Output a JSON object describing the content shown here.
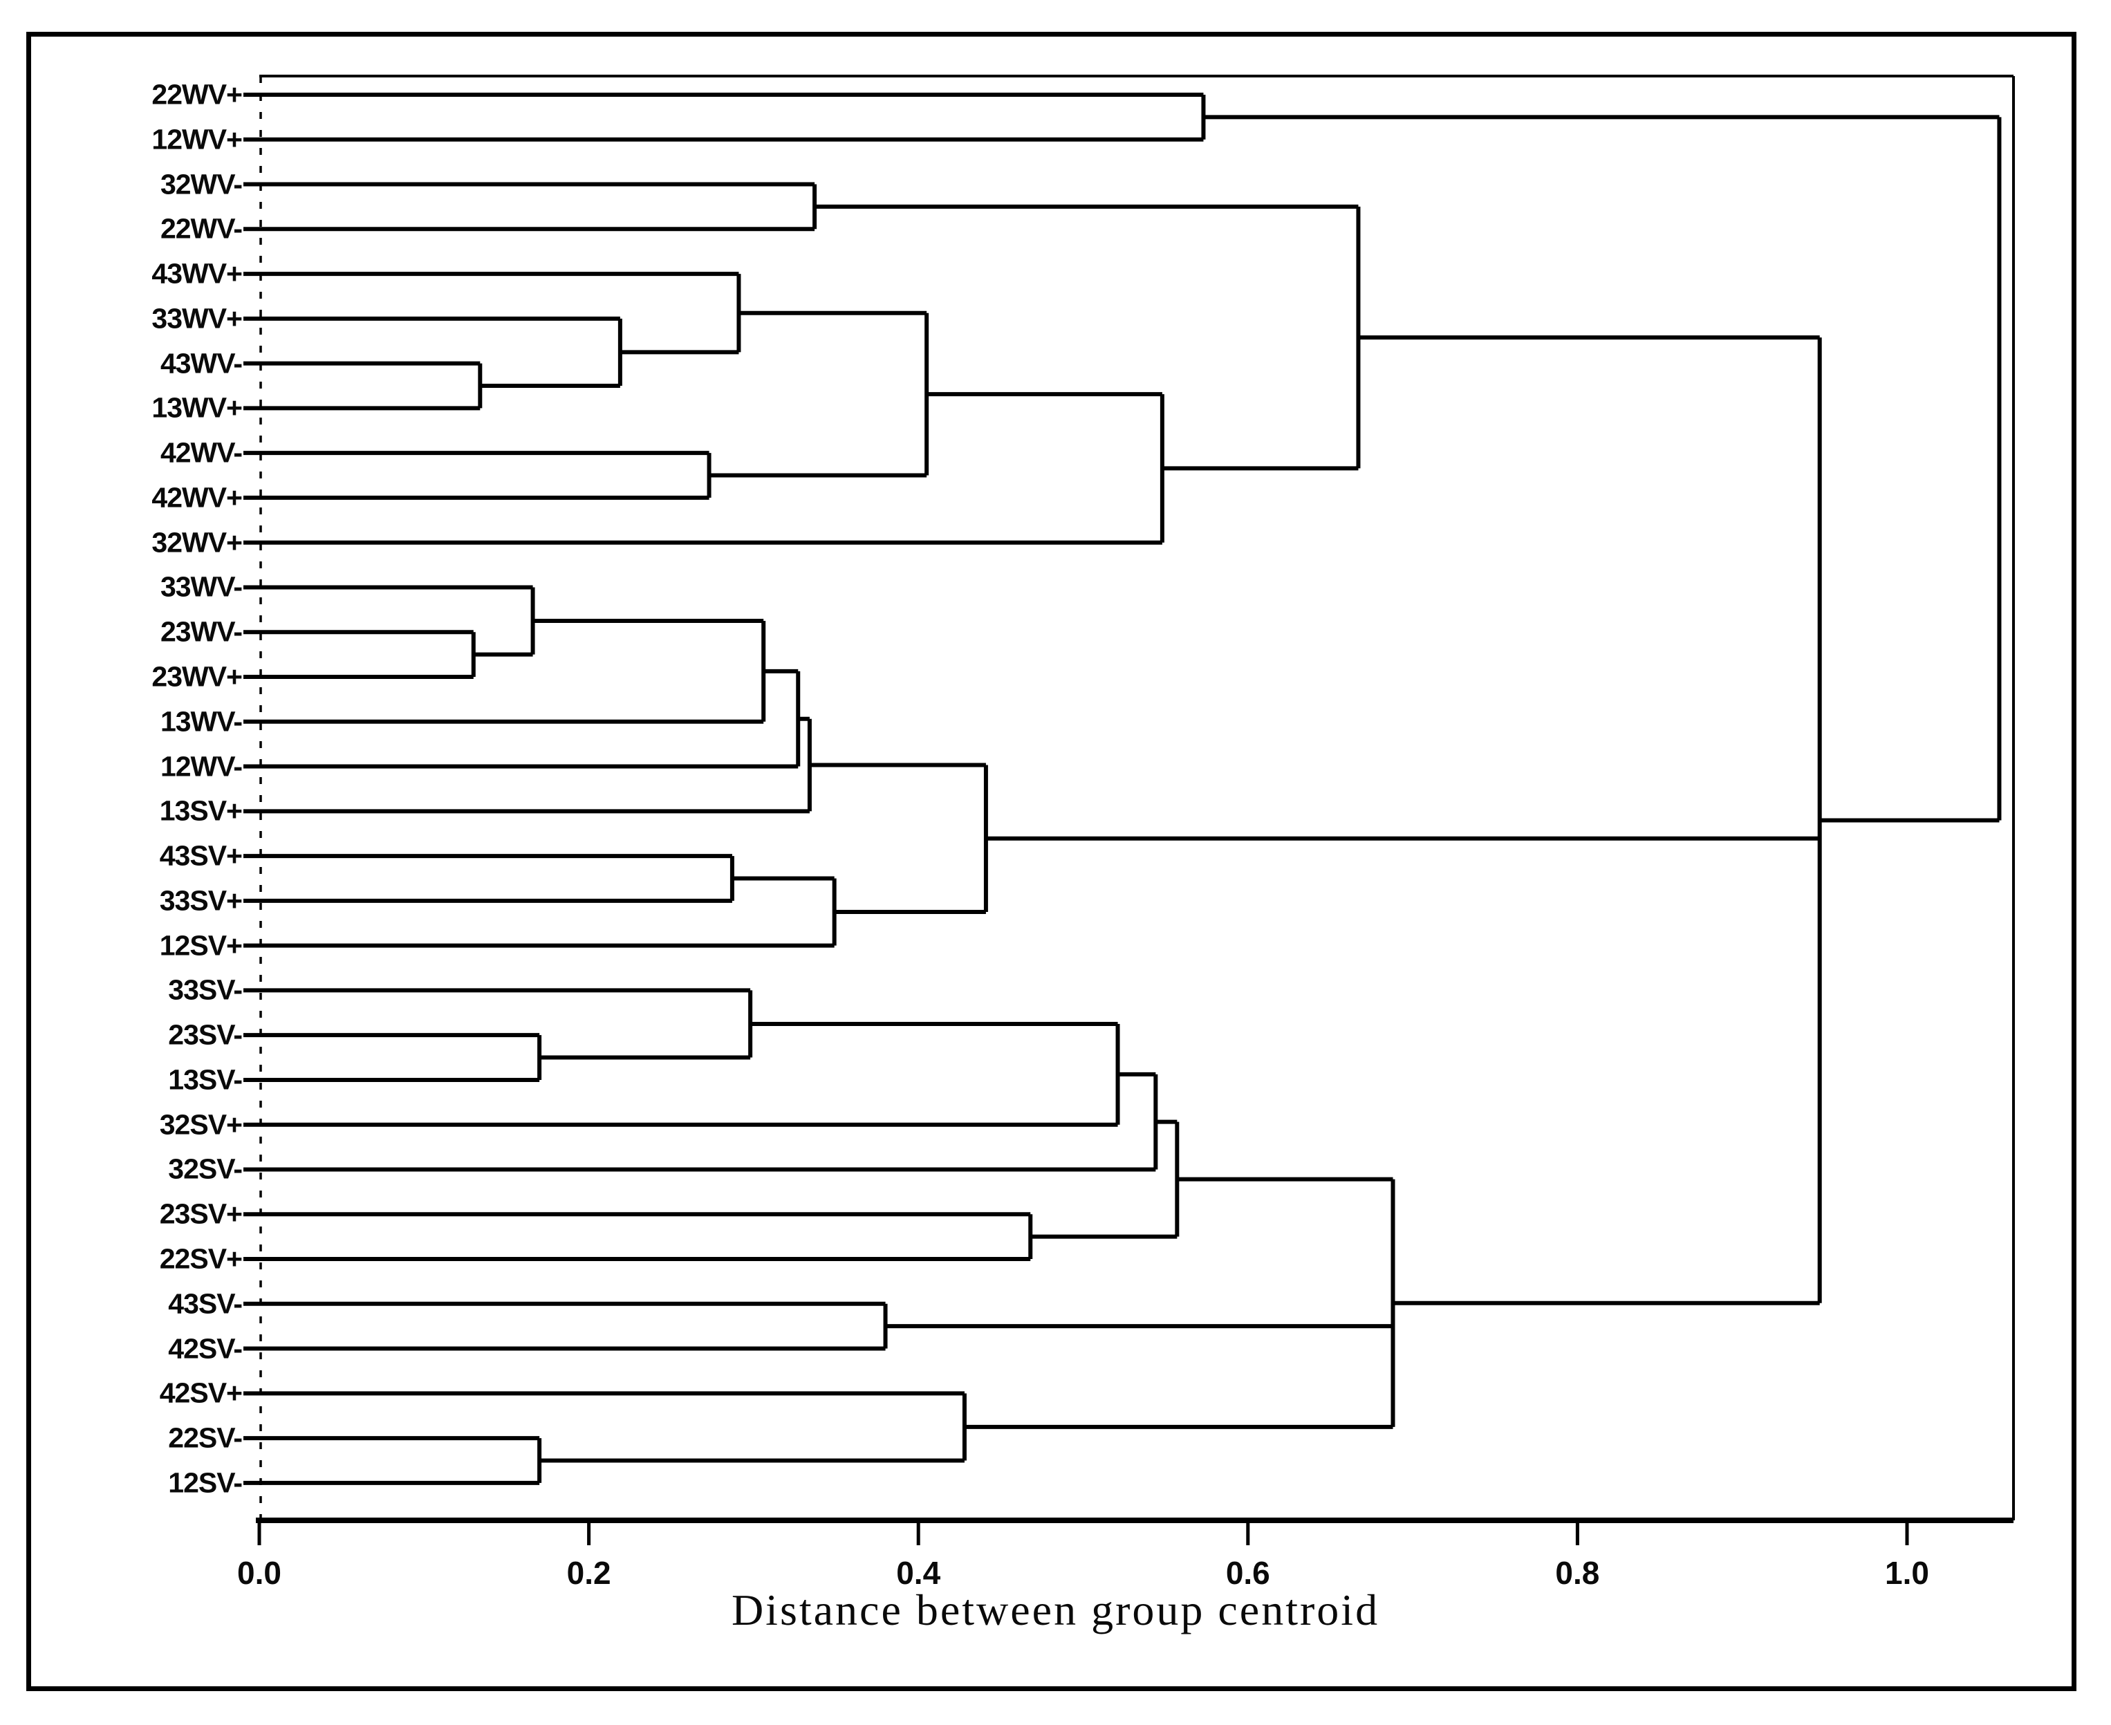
{
  "figure": {
    "kind": "scanned dendrogram figure",
    "background": "#ffffff",
    "line_color": "#000000"
  },
  "axis": {
    "title": "Distance between group centroid",
    "ticks": [
      {
        "label": "0.0",
        "value": 0.0
      },
      {
        "label": "0.2",
        "value": 0.2
      },
      {
        "label": "0.4",
        "value": 0.4
      },
      {
        "label": "0.6",
        "value": 0.6
      },
      {
        "label": "0.8",
        "value": 0.8
      },
      {
        "label": "1.0",
        "value": 1.0
      }
    ]
  },
  "chart_data": {
    "type": "dendrogram",
    "orientation": "horizontal",
    "xlabel": "Distance between group centroid",
    "xlim": [
      0.0,
      1.065
    ],
    "grid": false,
    "leaves": [
      "22WV+",
      "12WV+",
      "32WV-",
      "22WV-",
      "43WV+",
      "33WV+",
      "43WV-",
      "13WV+",
      "42WV-",
      "42WV+",
      "32WV+",
      "33WV-",
      "23WV-",
      "23WV+",
      "13WV-",
      "12WV-",
      "13SV+",
      "43SV+",
      "33SV+",
      "12SV+",
      "33SV-",
      "23SV-",
      "13SV-",
      "32SV+",
      "32SV-",
      "23SV+",
      "22SV+",
      "43SV-",
      "42SV-",
      "42SV+",
      "22SV-",
      "12SV-"
    ],
    "merges": [
      {
        "id": "A",
        "children": [
          "L1",
          "L2"
        ],
        "distance": 0.573
      },
      {
        "id": "B",
        "children": [
          "L3",
          "L4"
        ],
        "distance": 0.337
      },
      {
        "id": "C",
        "children": [
          "L7",
          "L8"
        ],
        "distance": 0.134
      },
      {
        "id": "D",
        "children": [
          "L6",
          "C"
        ],
        "distance": 0.219
      },
      {
        "id": "E",
        "children": [
          "L5",
          "D"
        ],
        "distance": 0.291
      },
      {
        "id": "F",
        "children": [
          "L9",
          "L10"
        ],
        "distance": 0.273
      },
      {
        "id": "G",
        "children": [
          "E",
          "F"
        ],
        "distance": 0.405
      },
      {
        "id": "H",
        "children": [
          "G",
          "L11"
        ],
        "distance": 0.548
      },
      {
        "id": "I",
        "children": [
          "B",
          "H"
        ],
        "distance": 0.667
      },
      {
        "id": "K",
        "children": [
          "L13",
          "L14"
        ],
        "distance": 0.13
      },
      {
        "id": "Lm",
        "children": [
          "L12",
          "K"
        ],
        "distance": 0.166
      },
      {
        "id": "M",
        "children": [
          "Lm",
          "L15"
        ],
        "distance": 0.306
      },
      {
        "id": "N",
        "children": [
          "M",
          "L16"
        ],
        "distance": 0.327
      },
      {
        "id": "O",
        "children": [
          "N",
          "L17"
        ],
        "distance": 0.334
      },
      {
        "id": "P",
        "children": [
          "L18",
          "L19"
        ],
        "distance": 0.287
      },
      {
        "id": "Q",
        "children": [
          "P",
          "L20"
        ],
        "distance": 0.349
      },
      {
        "id": "R",
        "children": [
          "O",
          "Q"
        ],
        "distance": 0.441
      },
      {
        "id": "S",
        "children": [
          "L22",
          "L23"
        ],
        "distance": 0.17
      },
      {
        "id": "T",
        "children": [
          "L21",
          "S"
        ],
        "distance": 0.298
      },
      {
        "id": "U",
        "children": [
          "T",
          "L24"
        ],
        "distance": 0.521
      },
      {
        "id": "V",
        "children": [
          "U",
          "L25"
        ],
        "distance": 0.544
      },
      {
        "id": "W",
        "children": [
          "L26",
          "L27"
        ],
        "distance": 0.468
      },
      {
        "id": "X",
        "children": [
          "V",
          "W"
        ],
        "distance": 0.557
      },
      {
        "id": "Y",
        "children": [
          "L28",
          "L29"
        ],
        "distance": 0.38
      },
      {
        "id": "Z",
        "children": [
          "L31",
          "L32"
        ],
        "distance": 0.17
      },
      {
        "id": "AA",
        "children": [
          "L30",
          "Z"
        ],
        "distance": 0.428
      },
      {
        "id": "SV",
        "children": [
          "X",
          "Y",
          "AA"
        ],
        "distance": 0.688
      },
      {
        "id": "MEGA",
        "children": [
          "I",
          "R",
          "SV"
        ],
        "distance": 0.947
      },
      {
        "id": "ROOT",
        "children": [
          "A",
          "MEGA"
        ],
        "distance": 1.056
      }
    ]
  }
}
